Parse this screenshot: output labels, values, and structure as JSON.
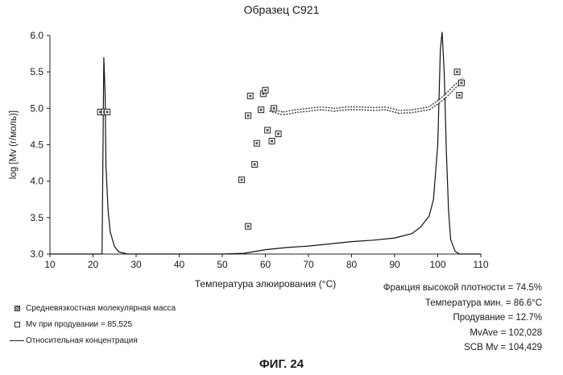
{
  "title": "Образец C921",
  "figure_label": "ФИГ. 24",
  "stats": [
    "Фракция высокой плотности = 74.5%",
    "Температура мин. = 86.6°C",
    "Продувание = 12.7%",
    "MvAve = 102,028",
    "SCB Mv = 104,429"
  ],
  "legend": [
    {
      "symbol": "filled-square",
      "label": "Средневязкостная молекулярная масса"
    },
    {
      "symbol": "open-square",
      "label": "Mv  при продувании  =  85,525"
    },
    {
      "symbol": "line",
      "label": "Относительная концентрация"
    }
  ],
  "chart_data": {
    "type": "line",
    "xlabel": "Температура элюирования (°C)",
    "ylabel": "log [Mv (г/моль)]",
    "xlim": [
      10,
      110
    ],
    "ylim": [
      3.0,
      6.0
    ],
    "xticks": [
      10,
      20,
      30,
      40,
      50,
      60,
      70,
      80,
      90,
      100,
      110
    ],
    "yticks": [
      "3.0",
      "3.5",
      "4.0",
      "4.5",
      "5.0",
      "5.5",
      "6.0"
    ],
    "series": [
      {
        "name": "Относительная концентрация",
        "style": "line",
        "x": [
          10,
          22.1,
          22.5,
          22.8,
          23.0,
          23.5,
          24.0,
          25.0,
          26.0,
          28.0,
          40.0,
          50.0,
          55.0,
          60.0,
          65.0,
          70.0,
          75.0,
          80.0,
          85.0,
          90.0,
          94.0,
          96.0,
          98.0,
          99.0,
          100.0,
          100.6,
          101.0,
          101.5,
          102.0,
          102.5,
          103.0,
          104.0,
          105.0,
          110
        ],
        "y": [
          3.0,
          3.0,
          5.7,
          5.2,
          4.2,
          3.6,
          3.3,
          3.1,
          3.03,
          3.0,
          3.0,
          3.0,
          3.01,
          3.06,
          3.09,
          3.11,
          3.14,
          3.17,
          3.19,
          3.22,
          3.28,
          3.37,
          3.52,
          3.75,
          4.5,
          5.8,
          6.05,
          5.5,
          4.4,
          3.6,
          3.2,
          3.04,
          3.0,
          3.0
        ]
      },
      {
        "name": "Средневязкостная молекулярная масса",
        "style": "line-dense",
        "x": [
          61,
          64,
          67,
          70,
          73,
          76,
          79,
          82,
          85,
          88,
          91,
          94,
          96,
          98,
          100,
          102,
          104,
          106
        ],
        "y": [
          4.98,
          4.93,
          4.96,
          4.98,
          5.0,
          4.98,
          5.0,
          5.0,
          4.99,
          5.0,
          4.95,
          4.96,
          4.98,
          5.0,
          5.08,
          5.18,
          5.3,
          5.4
        ]
      },
      {
        "name": "Mv при продувании",
        "style": "markers",
        "x": [
          21.7,
          22.6,
          23.3,
          54.5,
          56.0,
          56.5,
          57.5,
          58.0,
          59.0,
          59.5,
          60.0,
          60.5,
          61.5,
          62.0,
          63.0,
          56.0,
          104.5,
          105.0,
          105.5
        ],
        "y": [
          4.95,
          4.95,
          4.95,
          4.02,
          3.38,
          5.17,
          4.23,
          4.52,
          4.98,
          5.2,
          5.25,
          4.7,
          4.55,
          5.0,
          4.65,
          4.9,
          5.5,
          5.18,
          5.35
        ]
      }
    ]
  }
}
